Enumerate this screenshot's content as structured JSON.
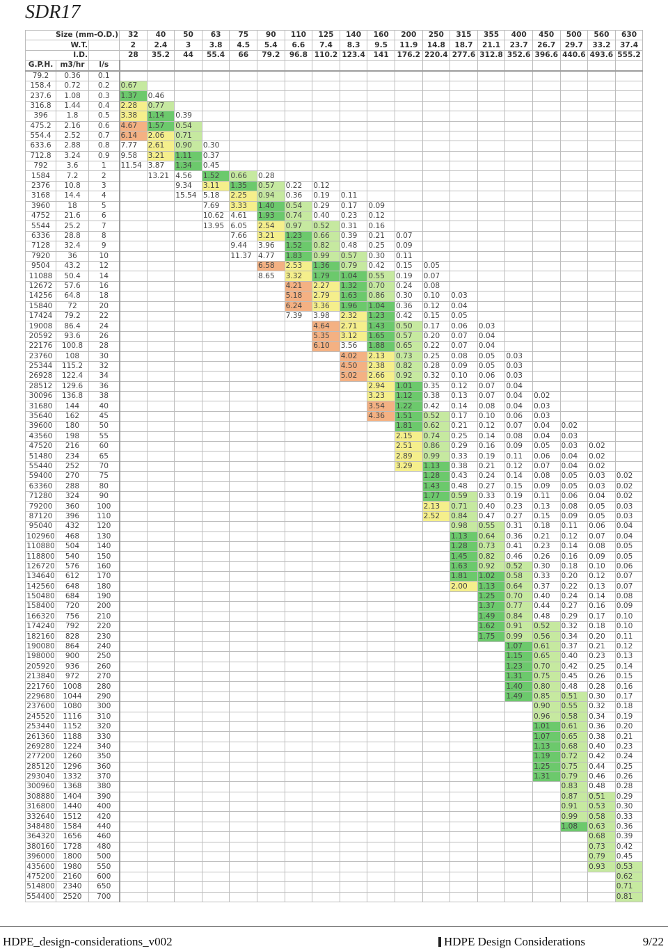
{
  "title": "SDR17",
  "header": {
    "size_label": "Size (mm-O.D.)",
    "wt_label": "W.T.",
    "id_label": "I.D.",
    "gph_label": "G.P.H.",
    "m3hr_label": "m3/hr",
    "ls_label": "l/s",
    "sizes": [
      "32",
      "40",
      "50",
      "63",
      "75",
      "90",
      "110",
      "125",
      "140",
      "160",
      "200",
      "250",
      "315",
      "355",
      "400",
      "450",
      "500",
      "560",
      "630"
    ],
    "wt": [
      "2",
      "2.4",
      "3",
      "3.8",
      "4.5",
      "5.4",
      "6.6",
      "7.4",
      "8.3",
      "9.5",
      "11.9",
      "14.8",
      "18.7",
      "21.1",
      "23.7",
      "26.7",
      "29.7",
      "33.2",
      "37.4"
    ],
    "id": [
      "28",
      "35.2",
      "44",
      "55.4",
      "66",
      "79.2",
      "96.8",
      "110.2",
      "123.4",
      "141",
      "176.2",
      "220.4",
      "277.6",
      "312.8",
      "352.6",
      "396.6",
      "440.6",
      "493.6",
      "555.2"
    ]
  },
  "colors": {
    "yellow": "#f5ef8c",
    "lightgreen": "#c6e9a0",
    "green": "#6cc96c",
    "orange": "#f4b183",
    "grid": "#bdbdbd"
  },
  "rows": [
    {
      "gph": "79.2",
      "m3": "0.36",
      "ls": "0.1",
      "s": 0,
      "v": []
    },
    {
      "gph": "158.4",
      "m3": "0.72",
      "ls": "0.2",
      "s": 0,
      "v": [
        "0.67"
      ]
    },
    {
      "gph": "237.6",
      "m3": "1.08",
      "ls": "0.3",
      "s": 0,
      "v": [
        "1.37",
        "0.46"
      ]
    },
    {
      "gph": "316.8",
      "m3": "1.44",
      "ls": "0.4",
      "s": 0,
      "v": [
        "2.28",
        "0.77"
      ]
    },
    {
      "gph": "396",
      "m3": "1.8",
      "ls": "0.5",
      "s": 0,
      "v": [
        "3.38",
        "1.14",
        "0.39"
      ]
    },
    {
      "gph": "475.2",
      "m3": "2.16",
      "ls": "0.6",
      "s": 0,
      "v": [
        "4.67",
        "1.57",
        "0.54"
      ]
    },
    {
      "gph": "554.4",
      "m3": "2.52",
      "ls": "0.7",
      "s": 0,
      "v": [
        "6.14",
        "2.06",
        "0.71"
      ]
    },
    {
      "gph": "633.6",
      "m3": "2.88",
      "ls": "0.8",
      "s": 0,
      "v": [
        "7.77",
        "2.61",
        "0.90",
        "0.30"
      ]
    },
    {
      "gph": "712.8",
      "m3": "3.24",
      "ls": "0.9",
      "s": 0,
      "v": [
        "9.58",
        "3.21",
        "1.11",
        "0.37"
      ]
    },
    {
      "gph": "792",
      "m3": "3.6",
      "ls": "1",
      "s": 0,
      "v": [
        "11.54",
        "3.87",
        "1.34",
        "0.45"
      ]
    },
    {
      "gph": "1584",
      "m3": "7.2",
      "ls": "2",
      "s": 1,
      "v": [
        "13.21",
        "4.56",
        "1.52",
        "0.66",
        "0.28"
      ]
    },
    {
      "gph": "2376",
      "m3": "10.8",
      "ls": "3",
      "s": 2,
      "v": [
        "9.34",
        "3.11",
        "1.35",
        "0.57",
        "0.22",
        "0.12"
      ]
    },
    {
      "gph": "3168",
      "m3": "14.4",
      "ls": "4",
      "s": 2,
      "v": [
        "15.54",
        "5.18",
        "2.25",
        "0.94",
        "0.36",
        "0.19",
        "0.11"
      ]
    },
    {
      "gph": "3960",
      "m3": "18",
      "ls": "5",
      "s": 3,
      "v": [
        "7.69",
        "3.33",
        "1.40",
        "0.54",
        "0.29",
        "0.17",
        "0.09"
      ]
    },
    {
      "gph": "4752",
      "m3": "21.6",
      "ls": "6",
      "s": 3,
      "v": [
        "10.62",
        "4.61",
        "1.93",
        "0.74",
        "0.40",
        "0.23",
        "0.12"
      ]
    },
    {
      "gph": "5544",
      "m3": "25.2",
      "ls": "7",
      "s": 3,
      "v": [
        "13.95",
        "6.05",
        "2.54",
        "0.97",
        "0.52",
        "0.31",
        "0.16"
      ]
    },
    {
      "gph": "6336",
      "m3": "28.8",
      "ls": "8",
      "s": 4,
      "v": [
        "7.66",
        "3.21",
        "1.23",
        "0.66",
        "0.39",
        "0.21",
        "0.07"
      ]
    },
    {
      "gph": "7128",
      "m3": "32.4",
      "ls": "9",
      "s": 4,
      "v": [
        "9.44",
        "3.96",
        "1.52",
        "0.82",
        "0.48",
        "0.25",
        "0.09"
      ]
    },
    {
      "gph": "7920",
      "m3": "36",
      "ls": "10",
      "s": 4,
      "v": [
        "11.37",
        "4.77",
        "1.83",
        "0.99",
        "0.57",
        "0.30",
        "0.11"
      ]
    },
    {
      "gph": "9504",
      "m3": "43.2",
      "ls": "12",
      "s": 5,
      "v": [
        "6.58",
        "2.53",
        "1.36",
        "0.79",
        "0.42",
        "0.15",
        "0.05"
      ]
    },
    {
      "gph": "11088",
      "m3": "50.4",
      "ls": "14",
      "s": 5,
      "v": [
        "8.65",
        "3.32",
        "1.79",
        "1.04",
        "0.55",
        "0.19",
        "0.07"
      ]
    },
    {
      "gph": "12672",
      "m3": "57.6",
      "ls": "16",
      "s": 6,
      "v": [
        "4.21",
        "2.27",
        "1.32",
        "0.70",
        "0.24",
        "0.08"
      ]
    },
    {
      "gph": "14256",
      "m3": "64.8",
      "ls": "18",
      "s": 6,
      "v": [
        "5.18",
        "2.79",
        "1.63",
        "0.86",
        "0.30",
        "0.10",
        "0.03"
      ]
    },
    {
      "gph": "15840",
      "m3": "72",
      "ls": "20",
      "s": 6,
      "v": [
        "6.24",
        "3.36",
        "1.96",
        "1.04",
        "0.36",
        "0.12",
        "0.04"
      ]
    },
    {
      "gph": "17424",
      "m3": "79.2",
      "ls": "22",
      "s": 6,
      "v": [
        "7.39",
        "3.98",
        "2.32",
        "1.23",
        "0.42",
        "0.15",
        "0.05"
      ]
    },
    {
      "gph": "19008",
      "m3": "86.4",
      "ls": "24",
      "s": 7,
      "v": [
        "4.64",
        "2.71",
        "1.43",
        "0.50",
        "0.17",
        "0.06",
        "0.03"
      ]
    },
    {
      "gph": "20592",
      "m3": "93.6",
      "ls": "26",
      "s": 7,
      "v": [
        "5.35",
        "3.12",
        "1.65",
        "0.57",
        "0.20",
        "0.07",
        "0.04"
      ]
    },
    {
      "gph": "22176",
      "m3": "100.8",
      "ls": "28",
      "s": 7,
      "v": [
        "6.10",
        "3.56",
        "1.88",
        "0.65",
        "0.22",
        "0.07",
        "0.04"
      ]
    },
    {
      "gph": "23760",
      "m3": "108",
      "ls": "30",
      "s": 8,
      "v": [
        "4.02",
        "2.13",
        "0.73",
        "0.25",
        "0.08",
        "0.05",
        "0.03"
      ]
    },
    {
      "gph": "25344",
      "m3": "115.2",
      "ls": "32",
      "s": 8,
      "v": [
        "4.50",
        "2.38",
        "0.82",
        "0.28",
        "0.09",
        "0.05",
        "0.03"
      ]
    },
    {
      "gph": "26928",
      "m3": "122.4",
      "ls": "34",
      "s": 8,
      "v": [
        "5.02",
        "2.66",
        "0.92",
        "0.32",
        "0.10",
        "0.06",
        "0.03"
      ]
    },
    {
      "gph": "28512",
      "m3": "129.6",
      "ls": "36",
      "s": 9,
      "v": [
        "2.94",
        "1.01",
        "0.35",
        "0.12",
        "0.07",
        "0.04"
      ]
    },
    {
      "gph": "30096",
      "m3": "136.8",
      "ls": "38",
      "s": 9,
      "v": [
        "3.23",
        "1.12",
        "0.38",
        "0.13",
        "0.07",
        "0.04",
        "0.02"
      ]
    },
    {
      "gph": "31680",
      "m3": "144",
      "ls": "40",
      "s": 9,
      "v": [
        "3.54",
        "1.22",
        "0.42",
        "0.14",
        "0.08",
        "0.04",
        "0.03"
      ]
    },
    {
      "gph": "35640",
      "m3": "162",
      "ls": "45",
      "s": 9,
      "v": [
        "4.36",
        "1.51",
        "0.52",
        "0.17",
        "0.10",
        "0.06",
        "0.03"
      ]
    },
    {
      "gph": "39600",
      "m3": "180",
      "ls": "50",
      "s": 10,
      "v": [
        "1.81",
        "0.62",
        "0.21",
        "0.12",
        "0.07",
        "0.04",
        "0.02"
      ]
    },
    {
      "gph": "43560",
      "m3": "198",
      "ls": "55",
      "s": 10,
      "v": [
        "2.15",
        "0.74",
        "0.25",
        "0.14",
        "0.08",
        "0.04",
        "0.03"
      ]
    },
    {
      "gph": "47520",
      "m3": "216",
      "ls": "60",
      "s": 10,
      "v": [
        "2.51",
        "0.86",
        "0.29",
        "0.16",
        "0.09",
        "0.05",
        "0.03",
        "0.02"
      ]
    },
    {
      "gph": "51480",
      "m3": "234",
      "ls": "65",
      "s": 10,
      "v": [
        "2.89",
        "0.99",
        "0.33",
        "0.19",
        "0.11",
        "0.06",
        "0.04",
        "0.02"
      ]
    },
    {
      "gph": "55440",
      "m3": "252",
      "ls": "70",
      "s": 10,
      "v": [
        "3.29",
        "1.13",
        "0.38",
        "0.21",
        "0.12",
        "0.07",
        "0.04",
        "0.02"
      ]
    },
    {
      "gph": "59400",
      "m3": "270",
      "ls": "75",
      "s": 11,
      "v": [
        "1.28",
        "0.43",
        "0.24",
        "0.14",
        "0.08",
        "0.05",
        "0.03",
        "0.02"
      ]
    },
    {
      "gph": "63360",
      "m3": "288",
      "ls": "80",
      "s": 11,
      "v": [
        "1.43",
        "0.48",
        "0.27",
        "0.15",
        "0.09",
        "0.05",
        "0.03",
        "0.02"
      ]
    },
    {
      "gph": "71280",
      "m3": "324",
      "ls": "90",
      "s": 11,
      "v": [
        "1.77",
        "0.59",
        "0.33",
        "0.19",
        "0.11",
        "0.06",
        "0.04",
        "0.02"
      ]
    },
    {
      "gph": "79200",
      "m3": "360",
      "ls": "100",
      "s": 11,
      "v": [
        "2.13",
        "0.71",
        "0.40",
        "0.23",
        "0.13",
        "0.08",
        "0.05",
        "0.03"
      ]
    },
    {
      "gph": "87120",
      "m3": "396",
      "ls": "110",
      "s": 11,
      "v": [
        "2.52",
        "0.84",
        "0.47",
        "0.27",
        "0.15",
        "0.09",
        "0.05",
        "0.03"
      ]
    },
    {
      "gph": "95040",
      "m3": "432",
      "ls": "120",
      "s": 12,
      "v": [
        "0.98",
        "0.55",
        "0.31",
        "0.18",
        "0.11",
        "0.06",
        "0.04"
      ]
    },
    {
      "gph": "102960",
      "m3": "468",
      "ls": "130",
      "s": 12,
      "v": [
        "1.13",
        "0.64",
        "0.36",
        "0.21",
        "0.12",
        "0.07",
        "0.04"
      ]
    },
    {
      "gph": "110880",
      "m3": "504",
      "ls": "140",
      "s": 12,
      "v": [
        "1.28",
        "0.73",
        "0.41",
        "0.23",
        "0.14",
        "0.08",
        "0.05"
      ]
    },
    {
      "gph": "118800",
      "m3": "540",
      "ls": "150",
      "s": 12,
      "v": [
        "1.45",
        "0.82",
        "0.46",
        "0.26",
        "0.16",
        "0.09",
        "0.05"
      ]
    },
    {
      "gph": "126720",
      "m3": "576",
      "ls": "160",
      "s": 12,
      "v": [
        "1.63",
        "0.92",
        "0.52",
        "0.30",
        "0.18",
        "0.10",
        "0.06"
      ]
    },
    {
      "gph": "134640",
      "m3": "612",
      "ls": "170",
      "s": 12,
      "v": [
        "1.81",
        "1.02",
        "0.58",
        "0.33",
        "0.20",
        "0.12",
        "0.07"
      ]
    },
    {
      "gph": "142560",
      "m3": "648",
      "ls": "180",
      "s": 12,
      "v": [
        "2.00",
        "1.13",
        "0.64",
        "0.37",
        "0.22",
        "0.13",
        "0.07"
      ]
    },
    {
      "gph": "150480",
      "m3": "684",
      "ls": "190",
      "s": 13,
      "v": [
        "1.25",
        "0.70",
        "0.40",
        "0.24",
        "0.14",
        "0.08"
      ]
    },
    {
      "gph": "158400",
      "m3": "720",
      "ls": "200",
      "s": 13,
      "v": [
        "1.37",
        "0.77",
        "0.44",
        "0.27",
        "0.16",
        "0.09"
      ]
    },
    {
      "gph": "166320",
      "m3": "756",
      "ls": "210",
      "s": 13,
      "v": [
        "1.49",
        "0.84",
        "0.48",
        "0.29",
        "0.17",
        "0.10"
      ]
    },
    {
      "gph": "174240",
      "m3": "792",
      "ls": "220",
      "s": 13,
      "v": [
        "1.62",
        "0.91",
        "0.52",
        "0.32",
        "0.18",
        "0.10"
      ]
    },
    {
      "gph": "182160",
      "m3": "828",
      "ls": "230",
      "s": 13,
      "v": [
        "1.75",
        "0.99",
        "0.56",
        "0.34",
        "0.20",
        "0.11"
      ]
    },
    {
      "gph": "190080",
      "m3": "864",
      "ls": "240",
      "s": 14,
      "v": [
        "1.07",
        "0.61",
        "0.37",
        "0.21",
        "0.12"
      ]
    },
    {
      "gph": "198000",
      "m3": "900",
      "ls": "250",
      "s": 14,
      "v": [
        "1.15",
        "0.65",
        "0.40",
        "0.23",
        "0.13"
      ]
    },
    {
      "gph": "205920",
      "m3": "936",
      "ls": "260",
      "s": 14,
      "v": [
        "1.23",
        "0.70",
        "0.42",
        "0.25",
        "0.14"
      ]
    },
    {
      "gph": "213840",
      "m3": "972",
      "ls": "270",
      "s": 14,
      "v": [
        "1.31",
        "0.75",
        "0.45",
        "0.26",
        "0.15"
      ]
    },
    {
      "gph": "221760",
      "m3": "1008",
      "ls": "280",
      "s": 14,
      "v": [
        "1.40",
        "0.80",
        "0.48",
        "0.28",
        "0.16"
      ]
    },
    {
      "gph": "229680",
      "m3": "1044",
      "ls": "290",
      "s": 14,
      "v": [
        "1.49",
        "0.85",
        "0.51",
        "0.30",
        "0.17"
      ]
    },
    {
      "gph": "237600",
      "m3": "1080",
      "ls": "300",
      "s": 15,
      "v": [
        "0.90",
        "0.55",
        "0.32",
        "0.18"
      ]
    },
    {
      "gph": "245520",
      "m3": "1116",
      "ls": "310",
      "s": 15,
      "v": [
        "0.96",
        "0.58",
        "0.34",
        "0.19"
      ]
    },
    {
      "gph": "253440",
      "m3": "1152",
      "ls": "320",
      "s": 15,
      "v": [
        "1.01",
        "0.61",
        "0.36",
        "0.20"
      ]
    },
    {
      "gph": "261360",
      "m3": "1188",
      "ls": "330",
      "s": 15,
      "v": [
        "1.07",
        "0.65",
        "0.38",
        "0.21"
      ]
    },
    {
      "gph": "269280",
      "m3": "1224",
      "ls": "340",
      "s": 15,
      "v": [
        "1.13",
        "0.68",
        "0.40",
        "0.23"
      ]
    },
    {
      "gph": "277200",
      "m3": "1260",
      "ls": "350",
      "s": 15,
      "v": [
        "1.19",
        "0.72",
        "0.42",
        "0.24"
      ]
    },
    {
      "gph": "285120",
      "m3": "1296",
      "ls": "360",
      "s": 15,
      "v": [
        "1.25",
        "0.75",
        "0.44",
        "0.25"
      ]
    },
    {
      "gph": "293040",
      "m3": "1332",
      "ls": "370",
      "s": 15,
      "v": [
        "1.31",
        "0.79",
        "0.46",
        "0.26"
      ]
    },
    {
      "gph": "300960",
      "m3": "1368",
      "ls": "380",
      "s": 16,
      "v": [
        "0.83",
        "0.48",
        "0.28"
      ]
    },
    {
      "gph": "308880",
      "m3": "1404",
      "ls": "390",
      "s": 16,
      "v": [
        "0.87",
        "0.51",
        "0.29"
      ]
    },
    {
      "gph": "316800",
      "m3": "1440",
      "ls": "400",
      "s": 16,
      "v": [
        "0.91",
        "0.53",
        "0.30"
      ]
    },
    {
      "gph": "332640",
      "m3": "1512",
      "ls": "420",
      "s": 16,
      "v": [
        "0.99",
        "0.58",
        "0.33"
      ]
    },
    {
      "gph": "348480",
      "m3": "1584",
      "ls": "440",
      "s": 16,
      "v": [
        "1.08",
        "0.63",
        "0.36"
      ]
    },
    {
      "gph": "364320",
      "m3": "1656",
      "ls": "460",
      "s": 17,
      "v": [
        "0.68",
        "0.39"
      ]
    },
    {
      "gph": "380160",
      "m3": "1728",
      "ls": "480",
      "s": 17,
      "v": [
        "0.73",
        "0.42"
      ]
    },
    {
      "gph": "396000",
      "m3": "1800",
      "ls": "500",
      "s": 17,
      "v": [
        "0.79",
        "0.45"
      ]
    },
    {
      "gph": "435600",
      "m3": "1980",
      "ls": "550",
      "s": 17,
      "v": [
        "0.93",
        "0.53"
      ]
    },
    {
      "gph": "475200",
      "m3": "2160",
      "ls": "600",
      "s": 18,
      "v": [
        "0.62"
      ]
    },
    {
      "gph": "514800",
      "m3": "2340",
      "ls": "650",
      "s": 18,
      "v": [
        "0.71"
      ]
    },
    {
      "gph": "554400",
      "m3": "2520",
      "ls": "700",
      "s": 18,
      "v": [
        "0.81"
      ]
    }
  ],
  "footer": {
    "left": "HDPE_design-considerations_v002",
    "center": "HDPE Design Considerations",
    "right": "9/22"
  }
}
